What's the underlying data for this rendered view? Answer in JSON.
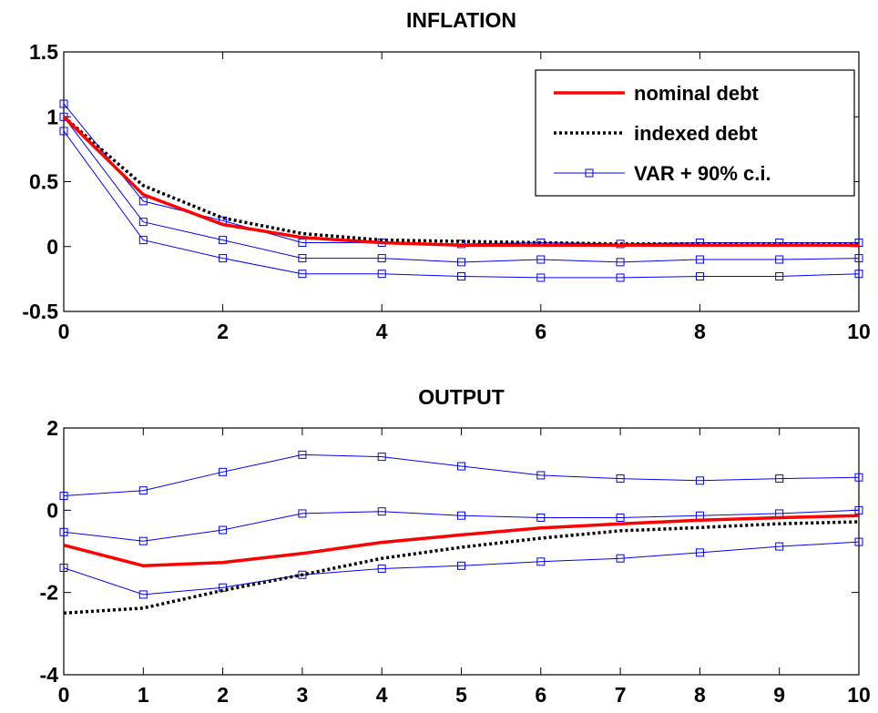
{
  "chart_data": [
    {
      "type": "line",
      "title": "INFLATION",
      "xlabel": "",
      "ylabel": "",
      "xlim": [
        0,
        10
      ],
      "ylim": [
        -0.5,
        1.5
      ],
      "xticks": [
        "0",
        "2",
        "4",
        "6",
        "8",
        "10"
      ],
      "xtick_values": [
        0,
        2,
        4,
        6,
        8,
        10
      ],
      "yticks": [
        "-0.5",
        "0",
        "0.5",
        "1",
        "1.5"
      ],
      "ytick_values": [
        -0.5,
        0,
        0.5,
        1,
        1.5
      ],
      "legend_position": "top-right",
      "x": [
        0,
        1,
        2,
        3,
        4,
        5,
        6,
        7,
        8,
        9,
        10
      ],
      "series": [
        {
          "name": "nominal debt",
          "color": "#ff0000",
          "style": "solid",
          "marker": "none",
          "values": [
            1.0,
            0.4,
            0.17,
            0.07,
            0.03,
            0.01,
            0.01,
            0.01,
            0.01,
            0.01,
            0.01
          ]
        },
        {
          "name": "indexed debt",
          "color": "#000000",
          "style": "dotted",
          "marker": "none",
          "values": [
            1.0,
            0.47,
            0.22,
            0.1,
            0.05,
            0.04,
            0.03,
            0.02,
            0.02,
            0.02,
            0.02
          ]
        },
        {
          "name": "VAR + 90% c.i.",
          "color": "#0000ff",
          "style": "solid",
          "marker": "square",
          "values": [
            1.0,
            0.19,
            0.05,
            -0.09,
            -0.09,
            -0.12,
            -0.1,
            -0.12,
            -0.1,
            -0.1,
            -0.09
          ]
        },
        {
          "name": "",
          "color": "#0000ff",
          "style": "solid",
          "marker": "square",
          "values": [
            1.1,
            0.35,
            0.2,
            0.03,
            0.03,
            0.02,
            0.03,
            0.02,
            0.03,
            0.03,
            0.03
          ]
        },
        {
          "name": "",
          "color": "#0000ff",
          "style": "solid",
          "marker": "square",
          "values": [
            0.89,
            0.05,
            -0.09,
            -0.21,
            -0.21,
            -0.23,
            -0.24,
            -0.24,
            -0.23,
            -0.23,
            -0.21
          ]
        }
      ]
    },
    {
      "type": "line",
      "title": "OUTPUT",
      "xlabel": "",
      "ylabel": "",
      "xlim": [
        0,
        10
      ],
      "ylim": [
        -4,
        2
      ],
      "xticks": [
        "0",
        "1",
        "2",
        "3",
        "4",
        "5",
        "6",
        "7",
        "8",
        "9",
        "10"
      ],
      "xtick_values": [
        0,
        1,
        2,
        3,
        4,
        5,
        6,
        7,
        8,
        9,
        10
      ],
      "yticks": [
        "-4",
        "-2",
        "0",
        "2"
      ],
      "ytick_values": [
        -4,
        -2,
        0,
        2
      ],
      "x": [
        0,
        1,
        2,
        3,
        4,
        5,
        6,
        7,
        8,
        9,
        10
      ],
      "series": [
        {
          "name": "nominal debt",
          "color": "#ff0000",
          "style": "solid",
          "marker": "none",
          "values": [
            -0.85,
            -1.35,
            -1.27,
            -1.05,
            -0.78,
            -0.6,
            -0.43,
            -0.33,
            -0.24,
            -0.18,
            -0.13
          ]
        },
        {
          "name": "indexed debt",
          "color": "#000000",
          "style": "dotted",
          "marker": "none",
          "values": [
            -2.5,
            -2.38,
            -1.95,
            -1.57,
            -1.17,
            -0.9,
            -0.68,
            -0.5,
            -0.42,
            -0.33,
            -0.28
          ]
        },
        {
          "name": "VAR + 90% c.i.",
          "color": "#0000ff",
          "style": "solid",
          "marker": "square",
          "values": [
            0.35,
            0.48,
            0.93,
            1.35,
            1.3,
            1.07,
            0.85,
            0.77,
            0.72,
            0.77,
            0.8
          ]
        },
        {
          "name": "",
          "color": "#0000ff",
          "style": "solid",
          "marker": "square",
          "values": [
            -0.53,
            -0.75,
            -0.48,
            -0.08,
            -0.03,
            -0.13,
            -0.18,
            -0.18,
            -0.13,
            -0.08,
            0.0
          ]
        },
        {
          "name": "",
          "color": "#0000ff",
          "style": "solid",
          "marker": "square",
          "values": [
            -1.4,
            -2.05,
            -1.88,
            -1.57,
            -1.42,
            -1.35,
            -1.25,
            -1.17,
            -1.03,
            -0.88,
            -0.77
          ]
        }
      ]
    }
  ]
}
